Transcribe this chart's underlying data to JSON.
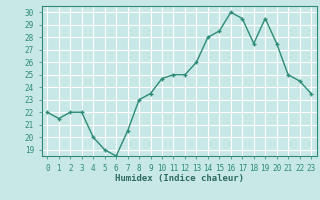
{
  "x": [
    0,
    1,
    2,
    3,
    4,
    5,
    6,
    7,
    8,
    9,
    10,
    11,
    12,
    13,
    14,
    15,
    16,
    17,
    18,
    19,
    20,
    21,
    22,
    23
  ],
  "y": [
    22,
    21.5,
    22,
    22,
    20,
    19,
    18.5,
    20.5,
    23,
    23.5,
    24.7,
    25,
    25,
    26,
    28,
    28.5,
    30,
    29.5,
    27.5,
    29.5,
    27.5,
    25,
    24.5,
    23.5
  ],
  "xlabel": "Humidex (Indice chaleur)",
  "ylabel": "",
  "xlim": [
    -0.5,
    23.5
  ],
  "ylim": [
    18.5,
    30.5
  ],
  "yticks": [
    19,
    20,
    21,
    22,
    23,
    24,
    25,
    26,
    27,
    28,
    29,
    30
  ],
  "xticks": [
    0,
    1,
    2,
    3,
    4,
    5,
    6,
    7,
    8,
    9,
    10,
    11,
    12,
    13,
    14,
    15,
    16,
    17,
    18,
    19,
    20,
    21,
    22,
    23
  ],
  "line_color": "#2e8b74",
  "bg_color": "#c8e8e8",
  "grid_color": "#ffffff",
  "label_fontsize": 6.5,
  "tick_fontsize": 5.5
}
